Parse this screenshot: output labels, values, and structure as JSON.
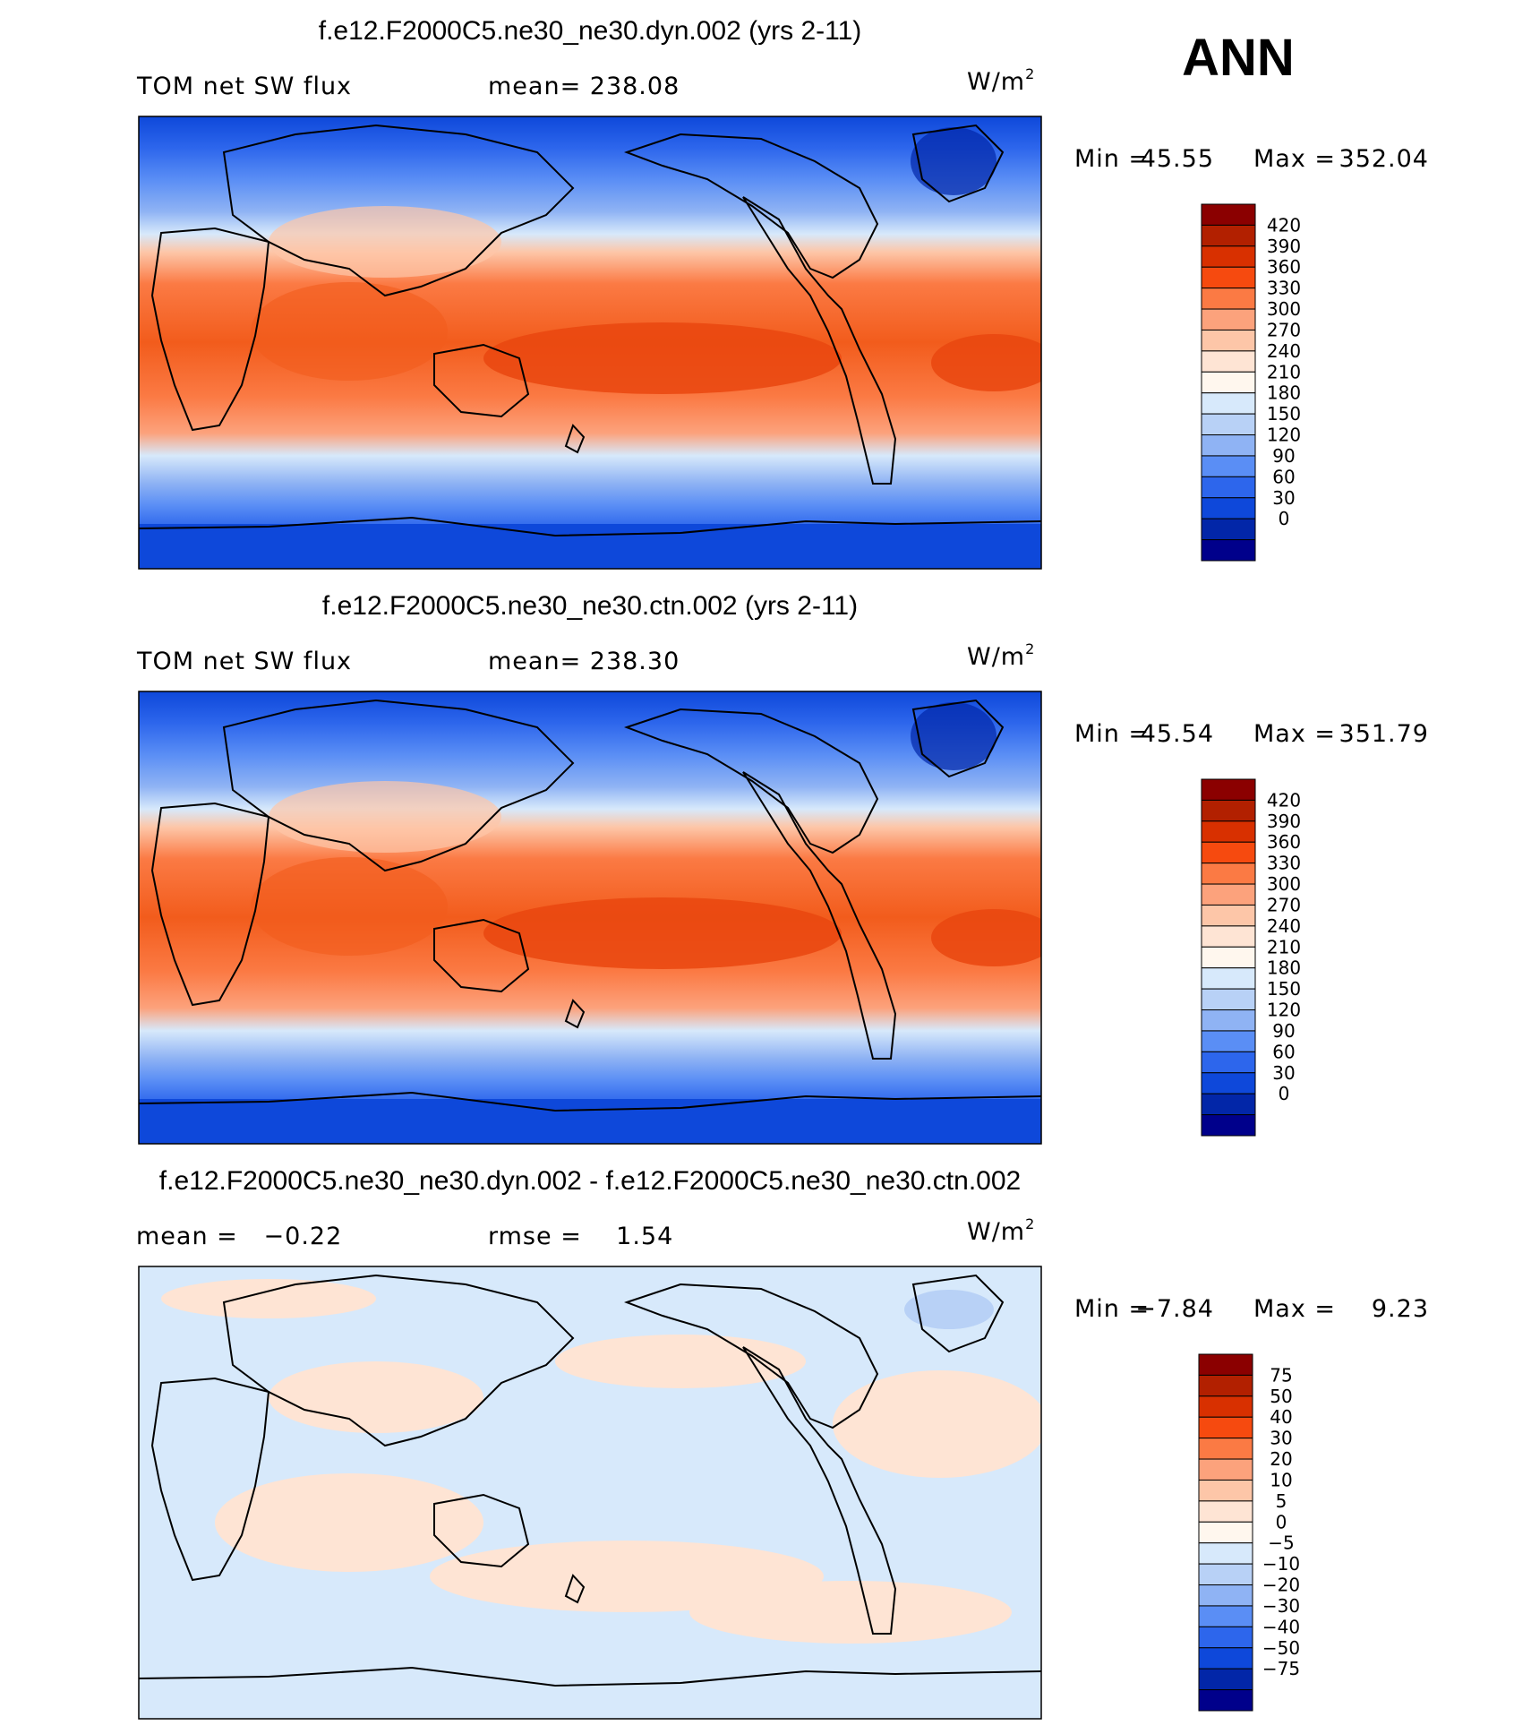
{
  "season": "ANN",
  "coastline_color": "#000000",
  "chart_data": [
    {
      "type": "heatmap",
      "title": "f.e12.F2000C5.ne30_ne30.dyn.002 (yrs 2-11)",
      "variable": "TOM net SW flux",
      "mean_text": "mean= 238.08",
      "units": "W/m",
      "units_exponent": "2",
      "min_text": "Min =",
      "min_value": "45.55",
      "max_text": "Max =",
      "max_value": "352.04",
      "colorbar_levels": [
        "420",
        "390",
        "360",
        "330",
        "300",
        "270",
        "240",
        "210",
        "180",
        "150",
        "120",
        "90",
        "60",
        "30",
        "0"
      ],
      "colorbar_colors": [
        "#8b0000",
        "#b22000",
        "#d83000",
        "#f64a0f",
        "#fb7a44",
        "#fca27c",
        "#fdc6a8",
        "#fee4d4",
        "#fff7ee",
        "#d7e9fb",
        "#b8d1f6",
        "#8fb3f4",
        "#5a8ef5",
        "#2d66ec",
        "#0e48da",
        "#0226a8",
        "#00008b"
      ]
    },
    {
      "type": "heatmap",
      "title": "f.e12.F2000C5.ne30_ne30.ctn.002 (yrs 2-11)",
      "variable": "TOM net SW flux",
      "mean_text": "mean= 238.30",
      "units": "W/m",
      "units_exponent": "2",
      "min_text": "Min =",
      "min_value": "45.54",
      "max_text": "Max =",
      "max_value": "351.79",
      "colorbar_levels": [
        "420",
        "390",
        "360",
        "330",
        "300",
        "270",
        "240",
        "210",
        "180",
        "150",
        "120",
        "90",
        "60",
        "30",
        "0"
      ],
      "colorbar_colors": [
        "#8b0000",
        "#b22000",
        "#d83000",
        "#f64a0f",
        "#fb7a44",
        "#fca27c",
        "#fdc6a8",
        "#fee4d4",
        "#fff7ee",
        "#d7e9fb",
        "#b8d1f6",
        "#8fb3f4",
        "#5a8ef5",
        "#2d66ec",
        "#0e48da",
        "#0226a8",
        "#00008b"
      ]
    },
    {
      "type": "heatmap",
      "title": "f.e12.F2000C5.ne30_ne30.dyn.002 - f.e12.F2000C5.ne30_ne30.ctn.002",
      "mean_text": "mean =   −0.22",
      "rmse_text": "rmse =    1.54",
      "units": "W/m",
      "units_exponent": "2",
      "min_text": "Min =",
      "min_value": "−7.84",
      "max_text": "Max =",
      "max_value": "9.23",
      "colorbar_levels": [
        "75",
        "50",
        "40",
        "30",
        "20",
        "10",
        "5",
        "0",
        "−5",
        "−10",
        "−20",
        "−30",
        "−40",
        "−50",
        "−75"
      ],
      "colorbar_colors": [
        "#8b0000",
        "#b22000",
        "#d83000",
        "#f64a0f",
        "#fb7a44",
        "#fca27c",
        "#fdc6a8",
        "#fee4d4",
        "#fff7ee",
        "#d7e9fb",
        "#b8d1f6",
        "#8fb3f4",
        "#5a8ef5",
        "#2d66ec",
        "#0e48da",
        "#0226a8",
        "#00008b"
      ]
    }
  ]
}
